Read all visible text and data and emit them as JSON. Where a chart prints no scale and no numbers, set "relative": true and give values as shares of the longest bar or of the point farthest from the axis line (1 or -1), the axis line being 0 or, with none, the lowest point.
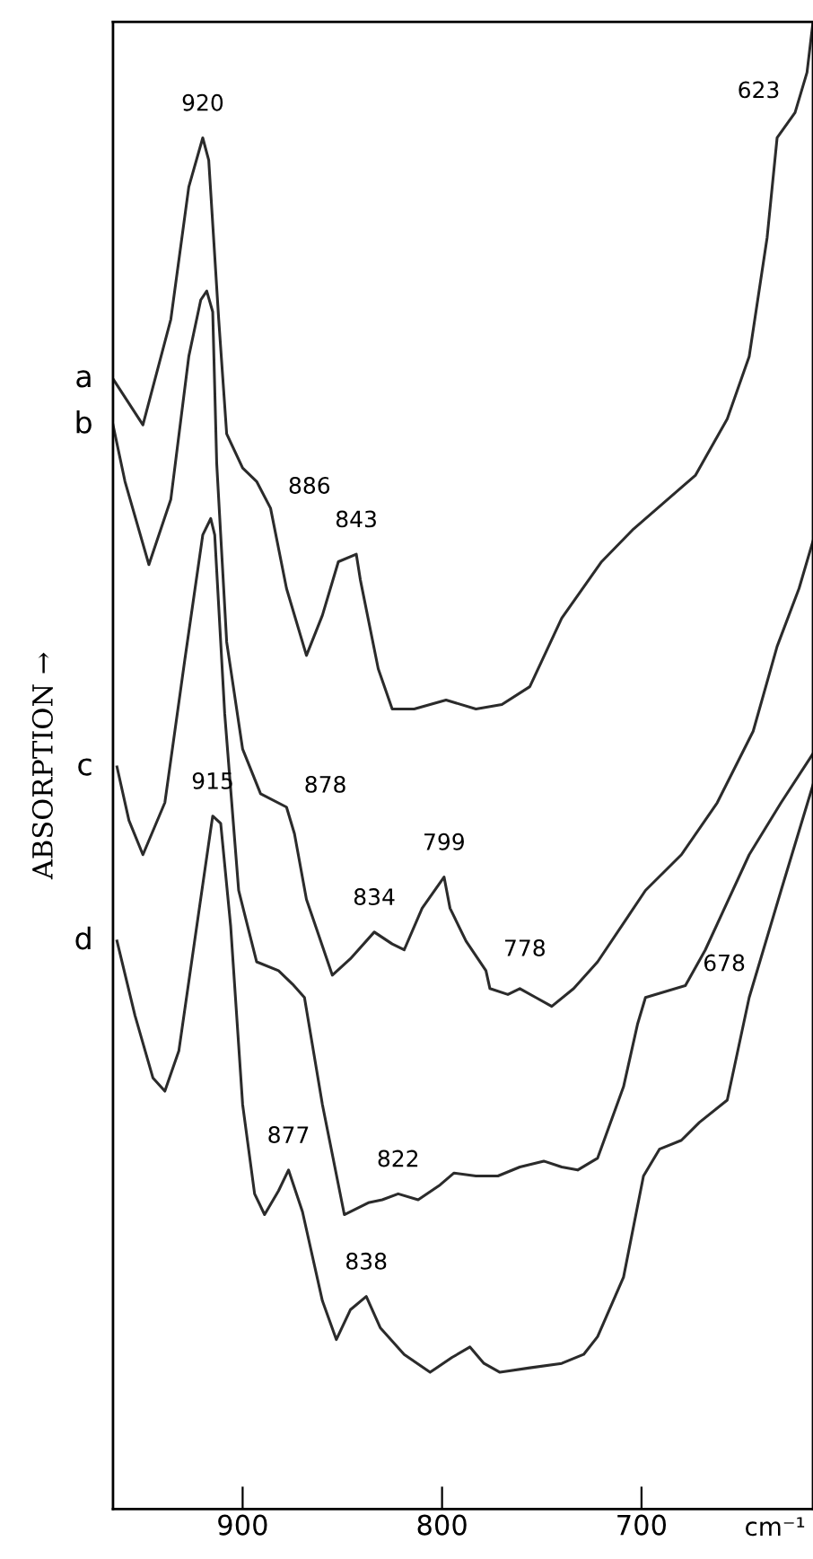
{
  "chart_data": {
    "type": "line",
    "relative": true,
    "xlabel": "cm⁻¹",
    "ylabel": "ABSORPTION →",
    "xlim": [
      965,
      614
    ],
    "xticks": [
      900,
      800,
      700
    ],
    "tick_labels": "x",
    "grid": false,
    "legend": false,
    "marker": "none",
    "line_style": "solid",
    "series": [
      {
        "name": "a",
        "color": "#2b2b2b",
        "x": [
          965,
          950,
          936,
          927,
          920,
          917,
          912,
          908,
          900,
          893,
          886,
          878,
          868,
          860,
          852,
          843,
          841,
          832,
          825,
          814,
          798,
          783,
          770,
          756,
          740,
          720,
          704,
          673,
          657,
          646,
          637,
          632,
          623,
          617,
          614
        ],
        "values": [
          0.76,
          0.729,
          0.8,
          0.889,
          0.922,
          0.907,
          0.8,
          0.723,
          0.7,
          0.691,
          0.673,
          0.619,
          0.574,
          0.601,
          0.637,
          0.642,
          0.625,
          0.565,
          0.538,
          0.538,
          0.544,
          0.538,
          0.541,
          0.553,
          0.599,
          0.637,
          0.659,
          0.695,
          0.733,
          0.775,
          0.855,
          0.922,
          0.939,
          0.966,
          1.0
        ]
      },
      {
        "name": "b",
        "color": "#2b2b2b",
        "x": [
          965,
          959,
          947,
          936,
          927,
          921,
          918,
          915,
          913,
          908,
          900,
          891,
          878,
          874,
          868,
          855,
          846,
          834,
          825,
          819,
          810,
          799,
          796,
          788,
          778,
          776,
          767,
          761,
          753,
          745,
          734,
          722,
          707,
          698,
          680,
          662,
          644,
          632,
          621,
          614
        ],
        "values": [
          0.729,
          0.691,
          0.635,
          0.679,
          0.775,
          0.813,
          0.819,
          0.805,
          0.703,
          0.583,
          0.511,
          0.481,
          0.472,
          0.454,
          0.41,
          0.359,
          0.37,
          0.388,
          0.38,
          0.376,
          0.404,
          0.425,
          0.404,
          0.382,
          0.362,
          0.35,
          0.346,
          0.35,
          0.344,
          0.338,
          0.35,
          0.368,
          0.398,
          0.416,
          0.44,
          0.475,
          0.523,
          0.58,
          0.619,
          0.651
        ]
      },
      {
        "name": "c",
        "color": "#2b2b2b",
        "x": [
          963,
          957,
          950,
          939,
          929,
          920,
          916,
          914,
          909,
          902,
          893,
          882,
          875,
          869,
          860,
          849,
          837,
          830,
          822,
          812,
          801,
          794,
          783,
          772,
          761,
          749,
          740,
          732,
          722,
          709,
          702,
          698,
          678,
          668,
          646,
          630,
          614
        ],
        "values": [
          0.499,
          0.463,
          0.44,
          0.475,
          0.571,
          0.655,
          0.666,
          0.655,
          0.535,
          0.416,
          0.368,
          0.362,
          0.353,
          0.344,
          0.272,
          0.198,
          0.206,
          0.208,
          0.212,
          0.208,
          0.218,
          0.226,
          0.224,
          0.224,
          0.23,
          0.234,
          0.23,
          0.228,
          0.236,
          0.284,
          0.326,
          0.344,
          0.352,
          0.376,
          0.44,
          0.475,
          0.508
        ]
      },
      {
        "name": "d",
        "color": "#2b2b2b",
        "x": [
          963,
          954,
          945,
          939,
          932,
          923,
          916,
          915,
          911,
          906,
          900,
          894,
          889,
          882,
          877,
          870,
          860,
          853,
          846,
          838,
          831,
          819,
          806,
          795,
          786,
          779,
          771,
          756,
          740,
          729,
          722,
          709,
          699,
          691,
          680,
          671,
          657,
          646,
          630,
          614
        ],
        "values": [
          0.382,
          0.332,
          0.29,
          0.281,
          0.308,
          0.392,
          0.457,
          0.466,
          0.461,
          0.392,
          0.272,
          0.212,
          0.198,
          0.214,
          0.228,
          0.2,
          0.14,
          0.114,
          0.134,
          0.143,
          0.122,
          0.104,
          0.092,
          0.102,
          0.109,
          0.098,
          0.092,
          0.095,
          0.098,
          0.104,
          0.116,
          0.156,
          0.224,
          0.242,
          0.248,
          0.26,
          0.275,
          0.344,
          0.416,
          0.487
        ]
      }
    ],
    "annotations": [
      {
        "text": "920",
        "x": 920,
        "y": 0.922
      },
      {
        "text": "623",
        "x": 623,
        "y": 0.939
      },
      {
        "text": "886",
        "x": 886,
        "y": 0.673
      },
      {
        "text": "843",
        "x": 843,
        "y": 0.642
      },
      {
        "text": "878",
        "x": 878,
        "y": 0.472
      },
      {
        "text": "915",
        "x": 915,
        "y": 0.466
      },
      {
        "text": "834",
        "x": 834,
        "y": 0.388
      },
      {
        "text": "799",
        "x": 799,
        "y": 0.425
      },
      {
        "text": "778",
        "x": 778,
        "y": 0.362
      },
      {
        "text": "678",
        "x": 678,
        "y": 0.352
      },
      {
        "text": "877",
        "x": 877,
        "y": 0.228
      },
      {
        "text": "822",
        "x": 822,
        "y": 0.212
      },
      {
        "text": "838",
        "x": 838,
        "y": 0.143
      }
    ]
  }
}
